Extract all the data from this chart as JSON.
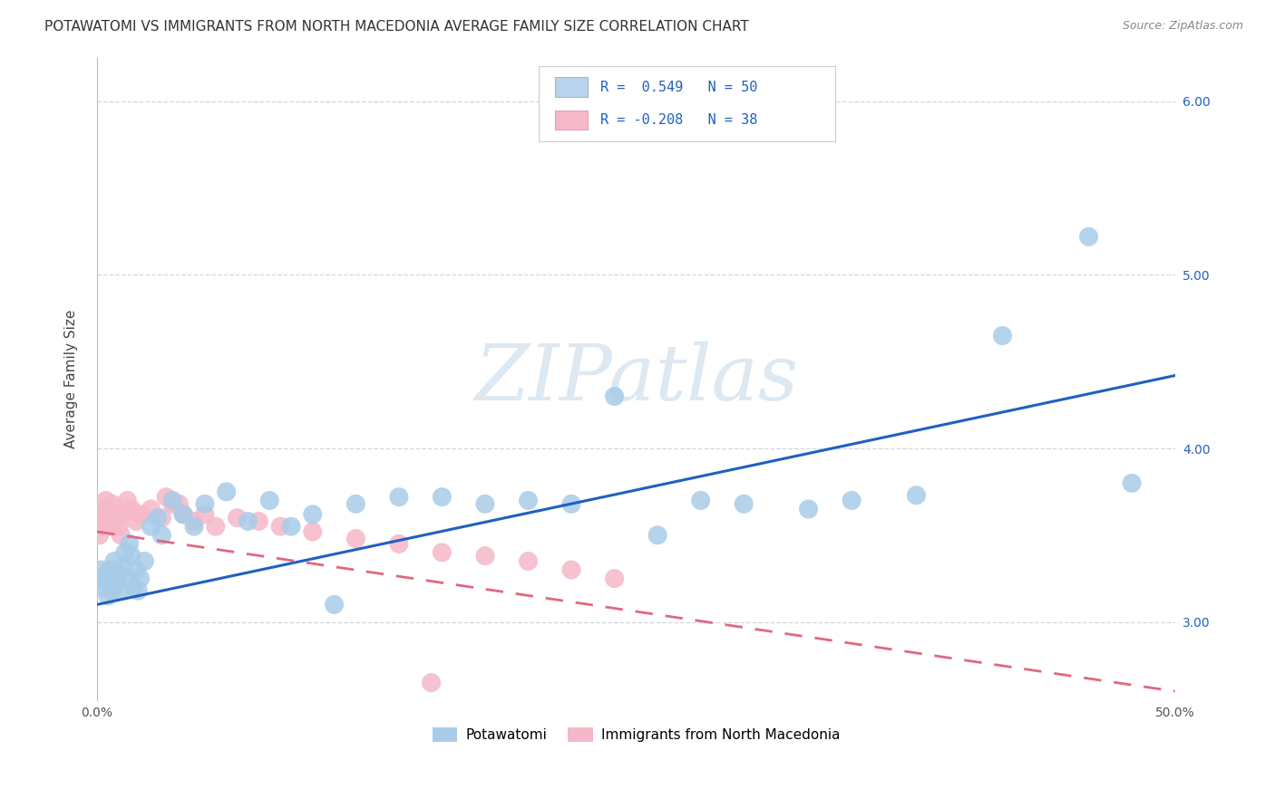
{
  "title": "POTAWATOMI VS IMMIGRANTS FROM NORTH MACEDONIA AVERAGE FAMILY SIZE CORRELATION CHART",
  "source": "Source: ZipAtlas.com",
  "ylabel": "Average Family Size",
  "xlim": [
    0.0,
    50.0
  ],
  "ylim": [
    2.55,
    6.25
  ],
  "yticks": [
    3.0,
    4.0,
    5.0,
    6.0
  ],
  "xtick_vals": [
    0,
    10,
    20,
    30,
    40,
    50
  ],
  "xtick_labels": [
    "0.0%",
    "",
    "",
    "",
    "",
    "50.0%"
  ],
  "legend_line1": "R =  0.549   N = 50",
  "legend_line2": "R = -0.208   N = 38",
  "blue_scatter_color": "#a8cce8",
  "pink_scatter_color": "#f5b8c8",
  "trend_blue_color": "#2060c0",
  "trend_pink_color": "#e06880",
  "legend_box_blue": "#b8d4ec",
  "legend_box_pink": "#f5b8c8",
  "legend_text_color": "#2060c0",
  "watermark_text": "ZIPatlas",
  "watermark_color": "#dce8f2",
  "legend_bottom_blue": "Potawatomi",
  "legend_bottom_pink": "Immigrants from North Macedonia",
  "title_color": "#333333",
  "right_tick_color": "#2060c0",
  "grid_color": "#d0d8e0",
  "blue_x": [
    0.1,
    0.2,
    0.3,
    0.4,
    0.5,
    0.6,
    0.7,
    0.8,
    0.9,
    1.0,
    1.1,
    1.2,
    1.3,
    1.4,
    1.5,
    1.6,
    1.7,
    1.8,
    1.9,
    2.0,
    2.2,
    2.5,
    2.8,
    3.0,
    3.5,
    4.0,
    4.5,
    5.0,
    6.0,
    7.0,
    8.0,
    9.0,
    10.0,
    11.0,
    12.0,
    14.0,
    16.0,
    18.0,
    20.0,
    22.0,
    24.0,
    26.0,
    28.0,
    30.0,
    33.0,
    35.0,
    38.0,
    42.0,
    46.0,
    48.0
  ],
  "blue_y": [
    3.25,
    3.3,
    3.2,
    3.25,
    3.15,
    3.3,
    3.18,
    3.35,
    3.22,
    3.28,
    3.18,
    3.32,
    3.4,
    3.25,
    3.45,
    3.38,
    3.2,
    3.3,
    3.18,
    3.25,
    3.35,
    3.55,
    3.6,
    3.5,
    3.7,
    3.62,
    3.55,
    3.68,
    3.75,
    3.58,
    3.7,
    3.55,
    3.62,
    3.1,
    3.68,
    3.72,
    3.72,
    3.68,
    3.7,
    3.68,
    4.3,
    3.5,
    3.7,
    3.68,
    3.65,
    3.7,
    3.73,
    4.65,
    5.22,
    3.8
  ],
  "pink_x": [
    0.1,
    0.15,
    0.2,
    0.3,
    0.4,
    0.5,
    0.6,
    0.7,
    0.8,
    0.9,
    1.0,
    1.1,
    1.2,
    1.4,
    1.6,
    1.8,
    2.0,
    2.5,
    3.0,
    3.5,
    4.0,
    4.5,
    5.0,
    5.5,
    6.5,
    7.5,
    8.5,
    10.0,
    12.0,
    14.0,
    16.0,
    18.0,
    20.0,
    22.0,
    24.0,
    15.5,
    3.2,
    3.8
  ],
  "pink_y": [
    3.5,
    3.6,
    3.55,
    3.65,
    3.7,
    3.6,
    3.55,
    3.68,
    3.58,
    3.62,
    3.55,
    3.5,
    3.62,
    3.7,
    3.65,
    3.58,
    3.62,
    3.65,
    3.6,
    3.68,
    3.62,
    3.58,
    3.62,
    3.55,
    3.6,
    3.58,
    3.55,
    3.52,
    3.48,
    3.45,
    3.4,
    3.38,
    3.35,
    3.3,
    3.25,
    2.65,
    3.72,
    3.68
  ],
  "blue_trend_x0": 0.0,
  "blue_trend_y0": 3.1,
  "blue_trend_x1": 50.0,
  "blue_trend_y1": 4.42,
  "pink_trend_x0": 0.0,
  "pink_trend_y0": 3.52,
  "pink_trend_x1": 50.0,
  "pink_trend_y1": 2.6
}
